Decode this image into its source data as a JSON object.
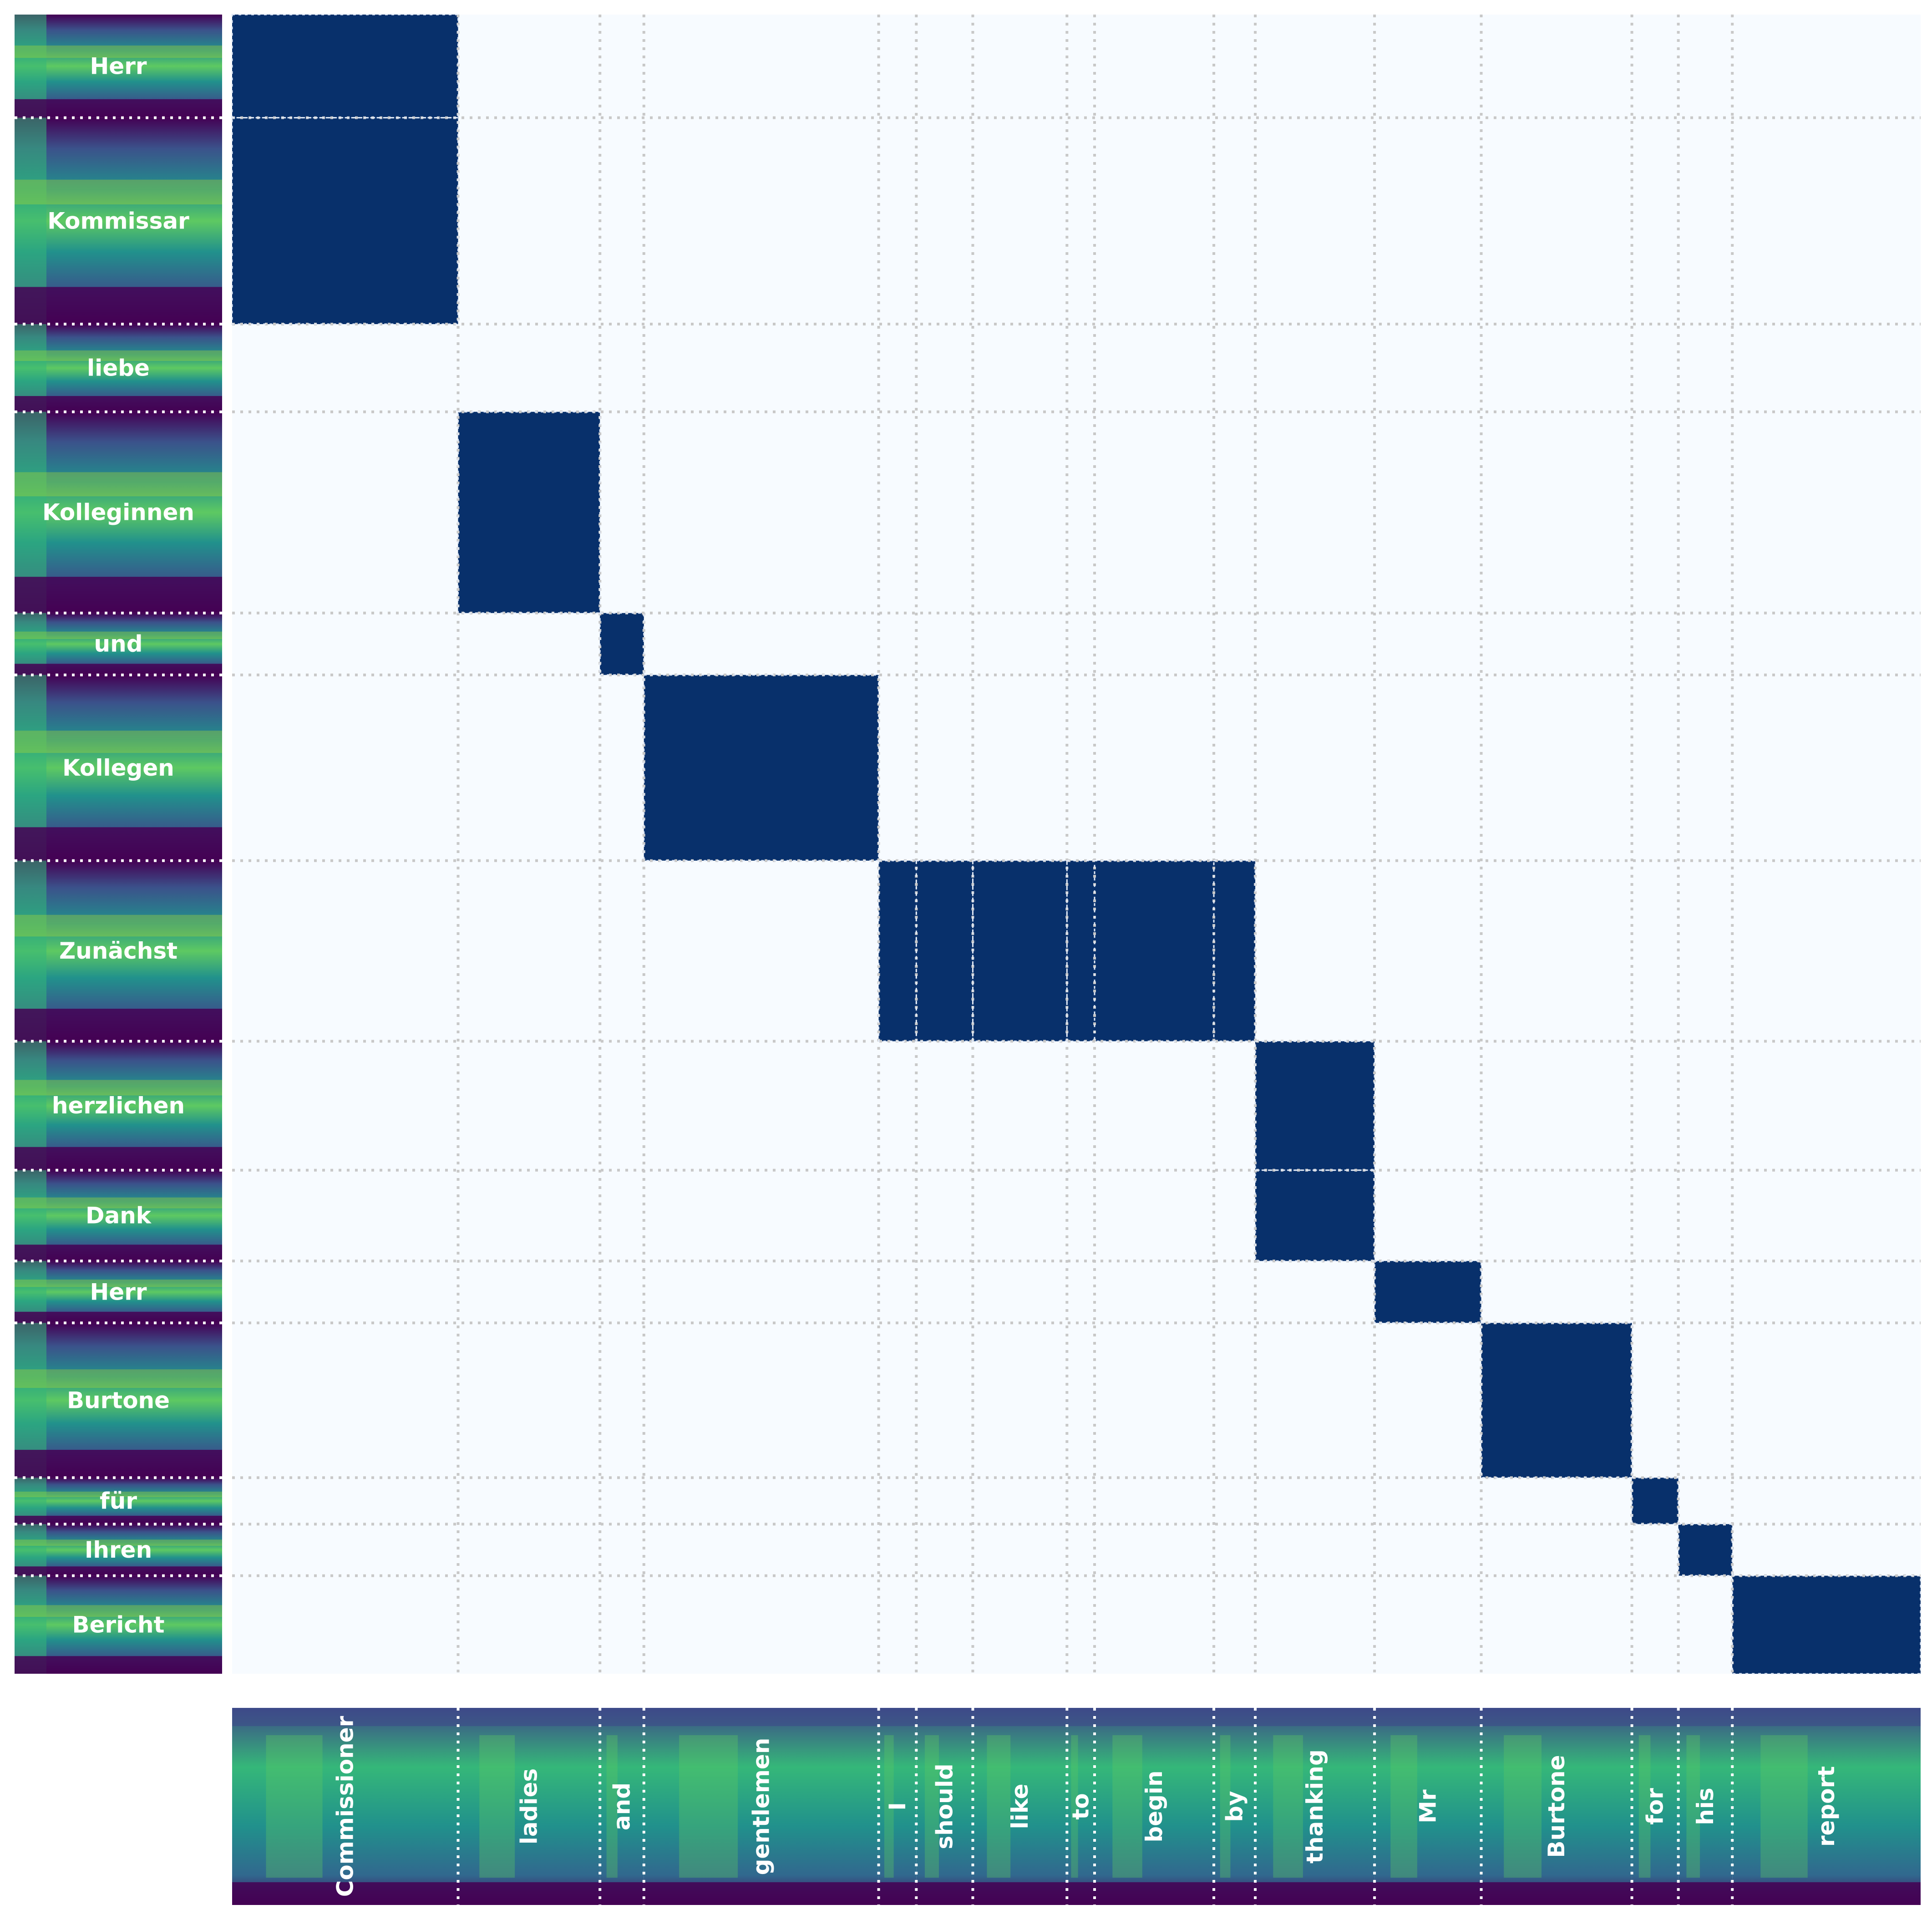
{
  "chart_data": {
    "type": "heatmap",
    "colormap": "Blues",
    "spectrogram_colormap": "viridis",
    "matrix_fill": "#f7fbff",
    "active_fill": "#08306b",
    "grid_line_color": "#c8c8c8",
    "source_words": [
      {
        "text": "Herr",
        "units": 1.0
      },
      {
        "text": "Kommissar",
        "units": 2.0
      },
      {
        "text": "liebe",
        "units": 0.85
      },
      {
        "text": "Kolleginnen",
        "units": 1.95
      },
      {
        "text": "und",
        "units": 0.6
      },
      {
        "text": "Kollegen",
        "units": 1.8
      },
      {
        "text": "Zunächst",
        "units": 1.75
      },
      {
        "text": "herzlichen",
        "units": 1.25
      },
      {
        "text": "Dank",
        "units": 0.88
      },
      {
        "text": "Herr",
        "units": 0.6
      },
      {
        "text": "Burtone",
        "units": 1.5
      },
      {
        "text": "für",
        "units": 0.45
      },
      {
        "text": "Ihren",
        "units": 0.5
      },
      {
        "text": "Bericht",
        "units": 0.95
      }
    ],
    "target_words": [
      {
        "text": "Commissioner",
        "units": 1.8
      },
      {
        "text": "ladies",
        "units": 1.13
      },
      {
        "text": "and",
        "units": 0.35
      },
      {
        "text": "gentlemen",
        "units": 1.87
      },
      {
        "text": "I",
        "units": 0.3
      },
      {
        "text": "should",
        "units": 0.45
      },
      {
        "text": "like",
        "units": 0.75
      },
      {
        "text": "to",
        "units": 0.22
      },
      {
        "text": "begin",
        "units": 0.95
      },
      {
        "text": "by",
        "units": 0.33
      },
      {
        "text": "thanking",
        "units": 0.95
      },
      {
        "text": "Mr",
        "units": 0.85
      },
      {
        "text": "Burtone",
        "units": 1.2
      },
      {
        "text": "for",
        "units": 0.37
      },
      {
        "text": "his",
        "units": 0.43
      },
      {
        "text": "report",
        "units": 1.5
      }
    ],
    "alignment": [
      [
        0,
        0
      ],
      [
        1,
        0
      ],
      [
        3,
        1
      ],
      [
        4,
        2
      ],
      [
        5,
        3
      ],
      [
        6,
        4
      ],
      [
        6,
        5
      ],
      [
        6,
        6
      ],
      [
        6,
        7
      ],
      [
        6,
        8
      ],
      [
        6,
        9
      ],
      [
        7,
        10
      ],
      [
        8,
        10
      ],
      [
        9,
        11
      ],
      [
        10,
        12
      ],
      [
        11,
        13
      ],
      [
        12,
        14
      ],
      [
        13,
        15
      ]
    ]
  }
}
